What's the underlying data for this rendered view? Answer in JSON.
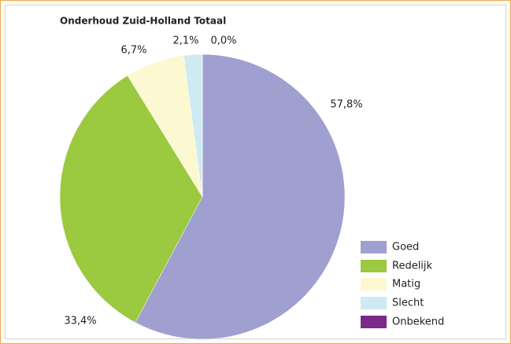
{
  "chart_data": {
    "type": "pie",
    "title": "Onderhoud Zuid-Holland Totaal",
    "categories": [
      "Goed",
      "Redelijk",
      "Matig",
      "Slecht",
      "Onbekend"
    ],
    "values": [
      57.8,
      33.4,
      6.7,
      2.1,
      0.0
    ],
    "value_labels": [
      "57,8%",
      "33,4%",
      "6,7%",
      "2,1%",
      "0,0%"
    ],
    "colors": [
      "#9fa0d0",
      "#9bc93f",
      "#fbf8d2",
      "#cdebf1",
      "#7b2a8a"
    ],
    "legend": "bottom-right"
  }
}
